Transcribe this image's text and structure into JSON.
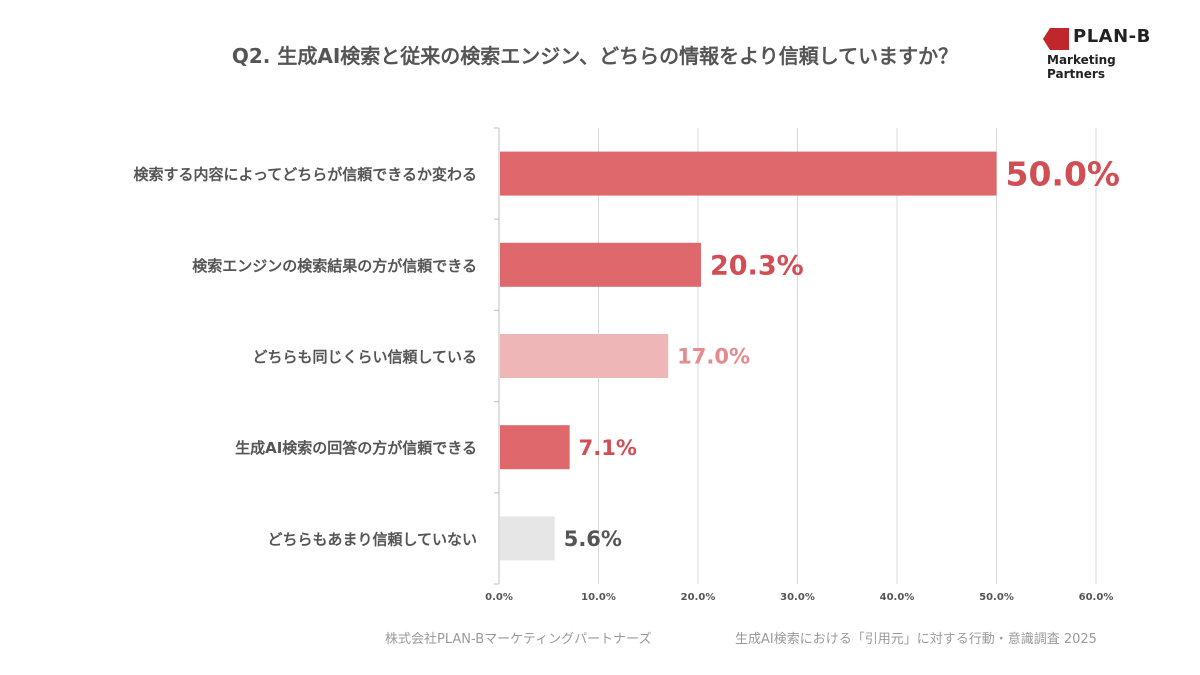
{
  "title": "Q2. 生成AI検索と従来の検索エンジン、どちらの情報をより信頼していますか？",
  "logo": {
    "brand": "PLAN-B",
    "sub": "Marketing Partners",
    "mark_color": "#c0272d"
  },
  "footer": {
    "left": "株式会社PLAN-Bマーケティングパートナーズ",
    "right": "生成AI検索における「引用元」に対する行動・意識調査 2025"
  },
  "chart_data": {
    "type": "bar",
    "orientation": "horizontal",
    "categories": [
      "検索する内容によってどちらが信頼できるか変わる",
      "検索エンジンの検索結果の方が信頼できる",
      "どちらも同じくらい信頼している",
      "生成AI検索の回答の方が信頼できる",
      "どちらもあまり信頼していない"
    ],
    "values": [
      50.0,
      20.3,
      17.0,
      7.1,
      5.6
    ],
    "value_labels": [
      "50.0%",
      "20.3%",
      "17.0%",
      "7.1%",
      "5.6%"
    ],
    "colors": [
      "#de686c",
      "#de686c",
      "#eeb6b7",
      "#de686c",
      "#e6e6e6"
    ],
    "label_colors": [
      "#d14e55",
      "#d14e55",
      "#e58a8e",
      "#d14e55",
      "#555555"
    ],
    "x_ticks": [
      "0.0%",
      "10.0%",
      "20.0%",
      "30.0%",
      "40.0%",
      "50.0%",
      "60.0%"
    ],
    "xlim": [
      0,
      60
    ],
    "grid": true
  }
}
